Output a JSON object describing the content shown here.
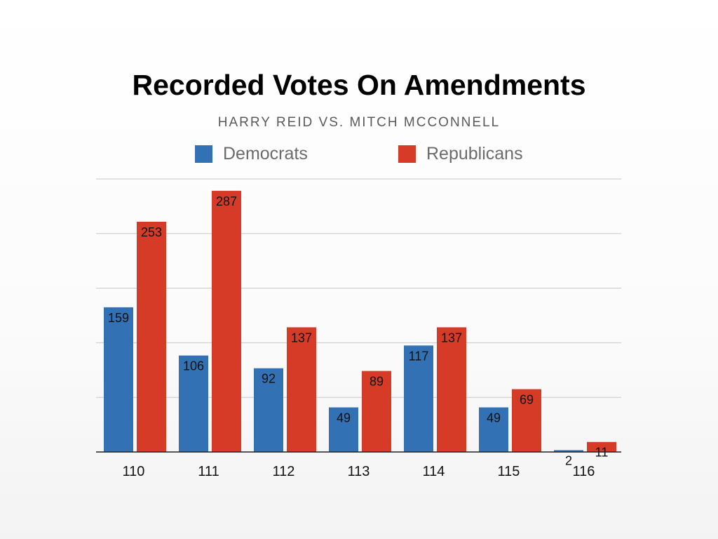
{
  "chart_data": {
    "type": "bar",
    "title": "Recorded Votes On Amendments",
    "subtitle": "HARRY REID VS. MITCH MCCONNELL",
    "categories": [
      "110",
      "111",
      "112",
      "113",
      "114",
      "115",
      "116"
    ],
    "series": [
      {
        "name": "Democrats",
        "color": "#3272b4",
        "values": [
          159,
          106,
          92,
          49,
          117,
          49,
          2
        ]
      },
      {
        "name": "Republicans",
        "color": "#d63b27",
        "values": [
          253,
          287,
          137,
          89,
          137,
          69,
          11
        ]
      }
    ],
    "ylim": [
      0,
      300
    ],
    "grid": true,
    "legend": "top"
  }
}
